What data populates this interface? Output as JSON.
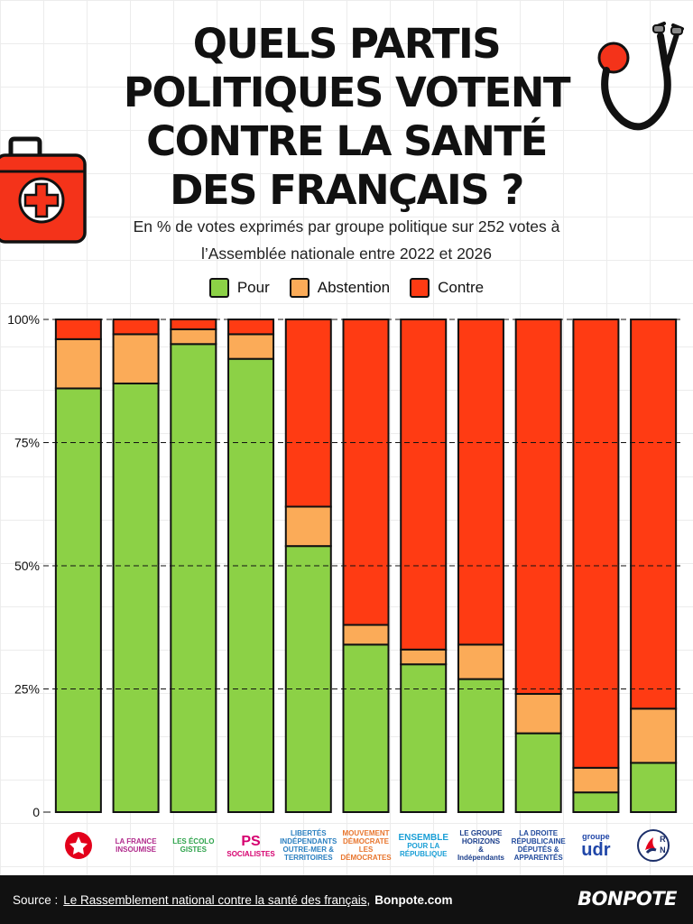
{
  "title": "QUELS PARTIS POLITIQUES VOTENT CONTRE LA SANTÉ DES FRANÇAIS ?",
  "subtitle_line1": "En % de votes exprimés par groupe politique sur 252 votes à",
  "subtitle_line2": "l’Assemblée nationale entre 2022 et 2026",
  "colors": {
    "pour": "#8cd146",
    "abstention": "#fbab58",
    "contre": "#ff3b13"
  },
  "chart_data": {
    "type": "bar",
    "stacked": true,
    "orientation": "vertical",
    "categories": [
      "PCF / GDR",
      "La France Insoumise",
      "Les Écologistes",
      "PS",
      "LIOT",
      "Les Démocrates",
      "Ensemble pour la République",
      "Horizons & Indépendants",
      "La Droite Républicaine",
      "UDR",
      "RN"
    ],
    "series": [
      {
        "name": "Pour",
        "values": [
          86,
          87,
          95,
          92,
          54,
          34,
          30,
          27,
          16,
          4,
          10
        ]
      },
      {
        "name": "Abstention",
        "values": [
          10,
          10,
          3,
          5,
          8,
          4,
          3,
          7,
          8,
          5,
          11
        ]
      },
      {
        "name": "Contre",
        "values": [
          4,
          3,
          2,
          3,
          38,
          62,
          67,
          66,
          76,
          91,
          79
        ]
      }
    ],
    "ylim": [
      0,
      100
    ],
    "yticks": [
      0,
      25,
      50,
      75,
      100
    ],
    "ytick_labels": [
      "0",
      "25%",
      "50%",
      "75%",
      "100%"
    ],
    "grid": "dashed horizontal at ticks",
    "legend": "top-center"
  },
  "logos": [
    {
      "icon": "pcf-star-icon",
      "lines": []
    },
    {
      "icon": "lfi-phi-icon",
      "lines": [
        "LA FRANCE",
        "INSOUMISE"
      ]
    },
    {
      "icon": "ecolo-sun-icon",
      "lines": [
        "LES ÉCOLO",
        "GISTES"
      ]
    },
    {
      "icon": "ps-rose-icon",
      "lines": [
        "PS",
        "SOCIALISTES"
      ]
    },
    {
      "icon": "liot-arc-icon",
      "lines": [
        "LIBERTÉS",
        "INDÉPENDANTS",
        "OUTRE-MER &",
        "TERRITOIRES"
      ]
    },
    {
      "icon": "dem-d-icon",
      "lines": [
        "MOUVEMENT",
        "DÉMOCRATE",
        "LES",
        "DÉMOCRATES"
      ]
    },
    {
      "icon": "ensemble-globe-icon",
      "lines": [
        "ENSEMBLE",
        "POUR LA RÉPUBLIQUE"
      ]
    },
    {
      "icon": "horizons-building-icon",
      "lines": [
        "LE GROUPE",
        "HORIZONS",
        "& Indépendants"
      ]
    },
    {
      "icon": "dr-building-icon",
      "lines": [
        "LA DROITE RÉPUBLICAINE",
        "DÉPUTÉS & APPARENTÉS"
      ]
    },
    {
      "icon": "udr-text-icon",
      "lines": [
        "groupe",
        "udr"
      ]
    },
    {
      "icon": "rn-flame-icon",
      "lines": [
        "R",
        "N"
      ]
    }
  ],
  "footer": {
    "source_label": "Source :",
    "source_link": "Le Rassemblement national contre la santé des français",
    "source_site": "Bonpote.com",
    "brand": "BONPOTE"
  },
  "decorations": [
    "first-aid-kit-icon",
    "stethoscope-icon"
  ]
}
